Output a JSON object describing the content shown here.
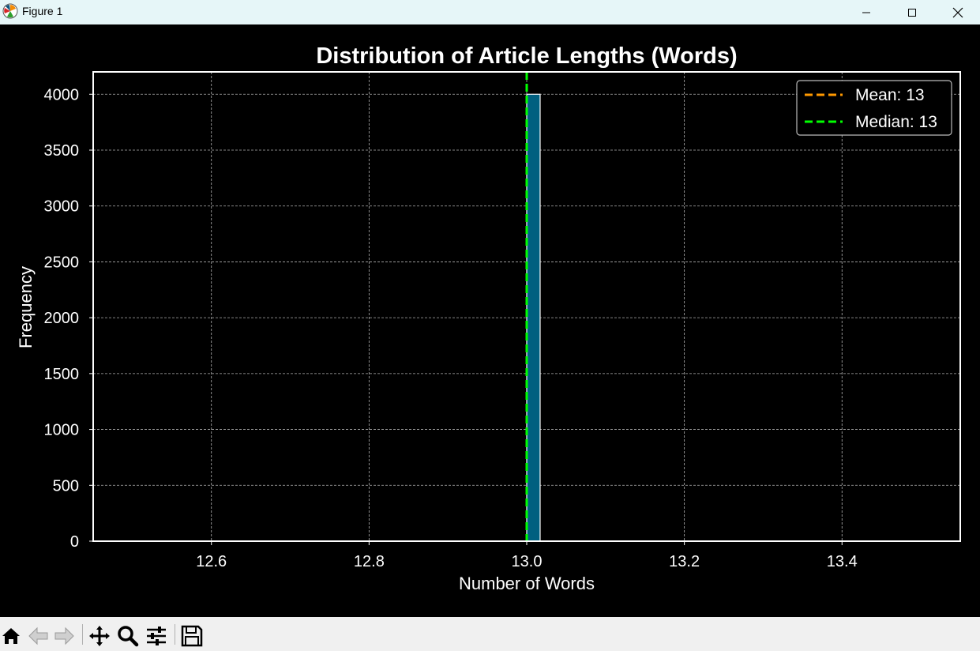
{
  "window": {
    "title": "Figure 1",
    "controls": [
      "minimize",
      "maximize",
      "close"
    ]
  },
  "toolbar": {
    "buttons": [
      "home-icon",
      "back-icon",
      "forward-icon",
      "pan-icon",
      "zoom-icon",
      "configure-subplots-icon",
      "save-icon"
    ]
  },
  "chart_data": {
    "type": "bar",
    "title": "Distribution of Article Lengths (Words)",
    "xlabel": "Number of Words",
    "ylabel": "Frequency",
    "xlim": [
      12.45,
      13.55
    ],
    "ylim": [
      0,
      4200
    ],
    "xticks": [
      12.6,
      12.8,
      13.0,
      13.2,
      13.4
    ],
    "xtick_labels": [
      "12.6",
      "12.8",
      "13.0",
      "13.2",
      "13.4"
    ],
    "yticks": [
      0,
      500,
      1000,
      1500,
      2000,
      2500,
      3000,
      3500,
      4000
    ],
    "ytick_labels": [
      "0",
      "500",
      "1000",
      "1500",
      "2000",
      "2500",
      "3000",
      "3500",
      "4000"
    ],
    "bins": [
      {
        "x0": 13.0,
        "x1": 13.017,
        "count": 4000
      }
    ],
    "bar_color": "#006080",
    "bar_edge_color": "#ffffff",
    "grid": true,
    "lines": [
      {
        "label": "Mean: 13",
        "x": 13.0,
        "color": "#ff9900",
        "style": "dashed"
      },
      {
        "label": "Median: 13",
        "x": 13.0,
        "color": "#00ff00",
        "style": "dashed"
      }
    ],
    "legend_position": "top-right",
    "background": "#000000",
    "foreground": "#ffffff"
  }
}
